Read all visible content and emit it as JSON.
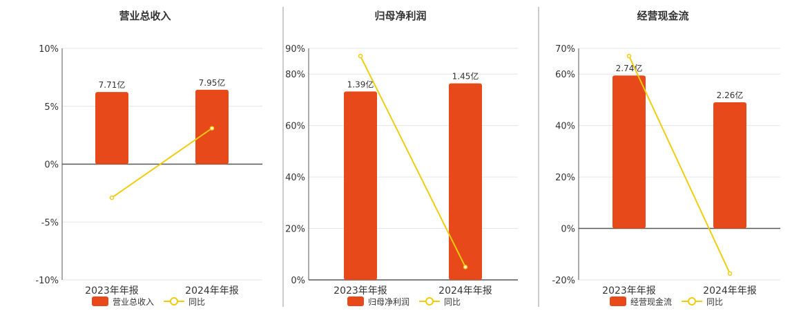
{
  "colors": {
    "bar": "#e8491b",
    "line": "#f2cc0c",
    "grid": "#e6e6e6",
    "axis": "#555555",
    "divider": "#999999",
    "text": "#333333"
  },
  "chart_data": [
    {
      "type": "bar",
      "title": "营业总收入",
      "categories": [
        "2023年年报",
        "2024年年报"
      ],
      "series": [
        {
          "name": "营业总收入",
          "kind": "bar",
          "values": [
            7.71,
            7.95
          ],
          "labels": [
            "7.71亿",
            "7.95亿"
          ]
        },
        {
          "name": "同比",
          "kind": "line",
          "values": [
            -2.9,
            3.1
          ]
        }
      ],
      "yticks": [
        "10%",
        "5%",
        "0%",
        "-5%",
        "-10%"
      ],
      "ylim": [
        -10,
        10
      ],
      "legend": "bottom",
      "grid": true
    },
    {
      "type": "bar",
      "title": "归母净利润",
      "categories": [
        "2023年年报",
        "2024年年报"
      ],
      "series": [
        {
          "name": "归母净利润",
          "kind": "bar",
          "values": [
            1.39,
            1.45
          ],
          "labels": [
            "1.39亿",
            "1.45亿"
          ]
        },
        {
          "name": "同比",
          "kind": "line",
          "values": [
            87,
            5
          ]
        }
      ],
      "yticks": [
        "90%",
        "80%",
        "60%",
        "40%",
        "20%",
        "0%"
      ],
      "ylim": [
        0,
        90
      ],
      "legend": "bottom",
      "grid": true
    },
    {
      "type": "bar",
      "title": "经营现金流",
      "categories": [
        "2023年年报",
        "2024年年报"
      ],
      "series": [
        {
          "name": "经营现金流",
          "kind": "bar",
          "values": [
            2.74,
            2.26
          ],
          "labels": [
            "2.74亿",
            "2.26亿"
          ]
        },
        {
          "name": "同比",
          "kind": "line",
          "values": [
            67,
            -17.5
          ]
        }
      ],
      "yticks": [
        "70%",
        "60%",
        "40%",
        "20%",
        "0%",
        "-20%"
      ],
      "ylim": [
        -20,
        70
      ],
      "legend": "bottom",
      "grid": true
    }
  ]
}
